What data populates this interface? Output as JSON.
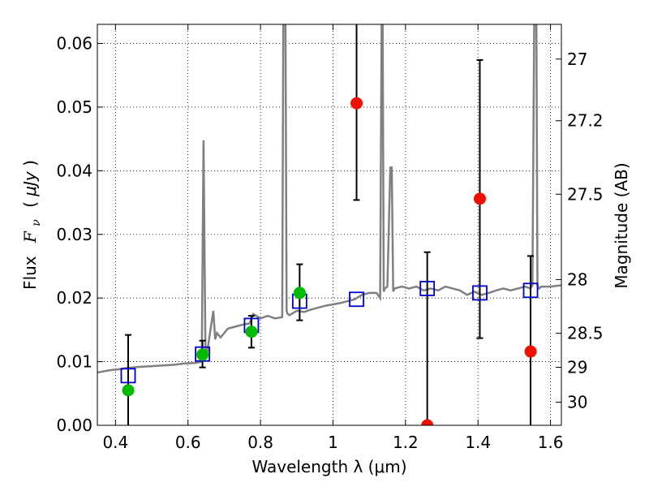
{
  "chart_data": {
    "type": "scatter",
    "xlabel": "Wavelength  λ (μm)",
    "ylabel_parts": {
      "flux": "Flux",
      "fnu": "F",
      "fnu_sub": "ν",
      "open": "( ",
      "unit": "μJy",
      "close": " )"
    },
    "y2label": "Magnitude (AB)",
    "xlim": [
      0.35,
      1.63
    ],
    "ylim": [
      0.0,
      0.063
    ],
    "xticks": [
      "0.4",
      "0.6",
      "0.8",
      "1",
      "1.2",
      "1.4",
      "1.6"
    ],
    "xtick_values": [
      0.4,
      0.6,
      0.8,
      1.0,
      1.2,
      1.4,
      1.6
    ],
    "yticks": [
      "0.00",
      "0.01",
      "0.02",
      "0.03",
      "0.04",
      "0.05",
      "0.06"
    ],
    "ytick_values": [
      0.0,
      0.01,
      0.02,
      0.03,
      0.04,
      0.05,
      0.06
    ],
    "y2ticks": [
      "27",
      "27.2",
      "27.5",
      "28",
      "28.5",
      "29",
      "30"
    ],
    "y2tick_values": [
      27,
      27.2,
      27.5,
      28,
      28.5,
      29,
      30
    ],
    "grid": true,
    "series": [
      {
        "kind": "line",
        "color": "#808080",
        "x": [
          0.35,
          0.37,
          0.39,
          0.41,
          0.43,
          0.45,
          0.47,
          0.5,
          0.53,
          0.56,
          0.59,
          0.62,
          0.638,
          0.643,
          0.648,
          0.652,
          0.66,
          0.67,
          0.675,
          0.68,
          0.69,
          0.71,
          0.73,
          0.75,
          0.77,
          0.78,
          0.8,
          0.82,
          0.84,
          0.86,
          0.863,
          0.866,
          0.869,
          0.872,
          0.875,
          0.88,
          0.9,
          0.92,
          0.94,
          0.96,
          0.98,
          1.0,
          1.02,
          1.04,
          1.06,
          1.08,
          1.1,
          1.12,
          1.13,
          1.134,
          1.137,
          1.14,
          1.143,
          1.15,
          1.158,
          1.162,
          1.166,
          1.17,
          1.19,
          1.21,
          1.23,
          1.25,
          1.27,
          1.29,
          1.31,
          1.33,
          1.35,
          1.37,
          1.39,
          1.41,
          1.43,
          1.45,
          1.47,
          1.49,
          1.51,
          1.53,
          1.545,
          1.55,
          1.555,
          1.558,
          1.561,
          1.564,
          1.568,
          1.575,
          1.6,
          1.63
        ],
        "y": [
          0.0083,
          0.0085,
          0.0087,
          0.0088,
          0.009,
          0.0091,
          0.0092,
          0.0093,
          0.0094,
          0.0095,
          0.0097,
          0.0098,
          0.01,
          0.0448,
          0.012,
          0.0112,
          0.0142,
          0.018,
          0.0135,
          0.0145,
          0.0138,
          0.0152,
          0.0155,
          0.0158,
          0.016,
          0.0175,
          0.0168,
          0.0172,
          0.0168,
          0.017,
          0.063,
          0.063,
          0.063,
          0.018,
          0.0175,
          0.0173,
          0.018,
          0.0178,
          0.0182,
          0.0185,
          0.0188,
          0.019,
          0.0192,
          0.0195,
          0.0198,
          0.0205,
          0.0208,
          0.0208,
          0.02,
          0.063,
          0.063,
          0.021,
          0.0215,
          0.0218,
          0.0405,
          0.0405,
          0.021,
          0.0215,
          0.0218,
          0.0215,
          0.0218,
          0.0212,
          0.0215,
          0.0212,
          0.0218,
          0.0215,
          0.0212,
          0.0205,
          0.021,
          0.0205,
          0.0208,
          0.0212,
          0.0215,
          0.0212,
          0.0215,
          0.0218,
          0.0215,
          0.022,
          0.063,
          0.063,
          0.063,
          0.022,
          0.0215,
          0.0218,
          0.0218,
          0.022
        ]
      },
      {
        "kind": "open-square",
        "color": "#0000cc",
        "x": [
          0.435,
          0.64,
          0.775,
          0.908,
          1.065,
          1.26,
          1.405,
          1.545
        ],
        "y": [
          0.0078,
          0.0112,
          0.0157,
          0.0195,
          0.0198,
          0.0215,
          0.0208,
          0.0212
        ]
      },
      {
        "kind": "errorbar",
        "color": "#000000",
        "x": [
          0.435,
          0.64,
          0.775,
          0.908,
          1.065,
          1.26,
          1.405,
          1.545
        ],
        "ylow": [
          0.0,
          0.0091,
          0.0122,
          0.0165,
          0.0354,
          0.0,
          0.0137,
          0.0
        ],
        "yhigh": [
          0.0142,
          0.0133,
          0.0172,
          0.0253,
          0.063,
          0.0272,
          0.0574,
          0.0266
        ],
        "caps_low": [
          false,
          true,
          true,
          true,
          true,
          false,
          true,
          false
        ],
        "caps_high": [
          true,
          true,
          true,
          true,
          false,
          true,
          true,
          true
        ]
      },
      {
        "kind": "dot",
        "color": "#00bb00",
        "x": [
          0.435,
          0.64,
          0.775,
          0.908
        ],
        "y": [
          0.0055,
          0.0111,
          0.0147,
          0.0208
        ]
      },
      {
        "kind": "dot",
        "color": "#ee1100",
        "x": [
          1.065,
          1.26,
          1.405,
          1.545
        ],
        "y": [
          0.0506,
          0.0,
          0.0356,
          0.0116
        ]
      }
    ]
  }
}
